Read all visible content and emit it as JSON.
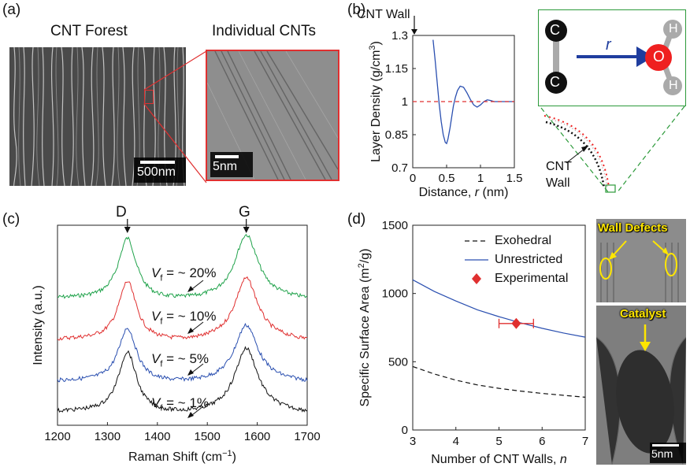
{
  "panel_labels": {
    "a": "(a)",
    "b": "(b)",
    "c": "(c)",
    "d": "(d)"
  },
  "panel_a": {
    "left_title": "CNT Forest",
    "right_title": "Individual CNTs",
    "left_scalebar": "500nm",
    "right_scalebar": "5nm",
    "inset_color": "#e03030"
  },
  "panel_b": {
    "wall_label": "CNT Wall",
    "schematic_r": "r",
    "atom_c": "C",
    "atom_o": "O",
    "atom_h": "H",
    "cnt_wall_label_line1": "CNT",
    "cnt_wall_label_line2": "Wall",
    "colors": {
      "oxygen": "#ef2020",
      "carbon": "#111111",
      "arrow": "#1f3d9e",
      "frame": "#2c9a3a"
    }
  },
  "panel_c_labels": {
    "D": "D",
    "G": "G"
  },
  "panel_c_vf": {
    "prefix": "V",
    "sub": "f",
    "values": [
      "= ~ 20%",
      "= ~ 10%",
      "= ~ 5%",
      "= ~ 1%"
    ]
  },
  "panel_d_images": {
    "wall_defects": "Wall Defects",
    "catalyst": "Catalyst",
    "scalebar": "5nm"
  },
  "chart_data": [
    {
      "type": "line",
      "panel": "b",
      "xlabel": "Distance, r (nm)",
      "ylabel": "Layer Density (g/cm3)",
      "xlim": [
        0,
        1.5
      ],
      "ylim": [
        0.7,
        1.3
      ],
      "xticks": [
        "0",
        "0.5",
        "1",
        "1.5"
      ],
      "yticks": [
        "0.7",
        "0.85",
        "1",
        "1.15",
        "1.3"
      ],
      "series": [
        {
          "color": "#2a4fb0",
          "x": [
            0.3,
            0.33,
            0.36,
            0.39,
            0.42,
            0.45,
            0.48,
            0.5,
            0.52,
            0.55,
            0.58,
            0.6,
            0.63,
            0.66,
            0.7,
            0.75,
            0.8,
            0.85,
            0.9,
            0.95,
            1.0,
            1.05,
            1.1,
            1.15,
            1.2,
            1.3,
            1.4,
            1.5
          ],
          "y": [
            1.28,
            1.19,
            1.09,
            0.99,
            0.91,
            0.85,
            0.815,
            0.81,
            0.83,
            0.88,
            0.94,
            0.98,
            1.02,
            1.05,
            1.07,
            1.065,
            1.04,
            1.01,
            0.985,
            0.975,
            0.985,
            1.0,
            1.008,
            1.005,
            1.0,
            1.0,
            1.0,
            1.0
          ]
        },
        {
          "color": "#e03030",
          "dash": true,
          "x": [
            0,
            1.5
          ],
          "y": [
            1.0,
            1.0
          ]
        }
      ]
    },
    {
      "type": "line",
      "panel": "c",
      "xlabel": "Raman Shift (cm−1)",
      "ylabel": "Intensity (a.u.)",
      "xlim": [
        1200,
        1700
      ],
      "xticks": [
        "1200",
        "1300",
        "1400",
        "1500",
        "1600",
        "1700"
      ],
      "series": [
        {
          "color": "#1fa24a",
          "baseline": 3.0
        },
        {
          "color": "#e03030",
          "baseline": 2.0
        },
        {
          "color": "#2a4fb0",
          "baseline": 1.0
        },
        {
          "color": "#111111",
          "baseline": 0.0
        }
      ]
    },
    {
      "type": "line",
      "panel": "d",
      "xlabel": "Number of CNT Walls, n",
      "ylabel": "Specific Surface Area (m2/g)",
      "xlim": [
        3,
        7
      ],
      "ylim": [
        0,
        1500
      ],
      "xticks": [
        "3",
        "4",
        "5",
        "6",
        "7"
      ],
      "yticks": [
        "0",
        "500",
        "1000",
        "1500"
      ],
      "series": [
        {
          "name": "Exohedral",
          "color": "#111111",
          "dash": true,
          "x": [
            3,
            3.5,
            4,
            4.5,
            5,
            5.5,
            6,
            6.5,
            7
          ],
          "y": [
            465,
            410,
            365,
            330,
            305,
            285,
            268,
            254,
            240
          ]
        },
        {
          "name": "Unrestricted",
          "color": "#2a4fb0",
          "x": [
            3,
            3.5,
            4,
            4.5,
            5,
            5.5,
            6,
            6.5,
            7
          ],
          "y": [
            1100,
            1015,
            945,
            880,
            830,
            785,
            745,
            710,
            680
          ]
        },
        {
          "name": "Experimental",
          "color": "#e03030",
          "marker": "diamond",
          "x": [
            5.4
          ],
          "y": [
            780
          ],
          "xerr": [
            5.0,
            5.8
          ]
        }
      ]
    }
  ]
}
